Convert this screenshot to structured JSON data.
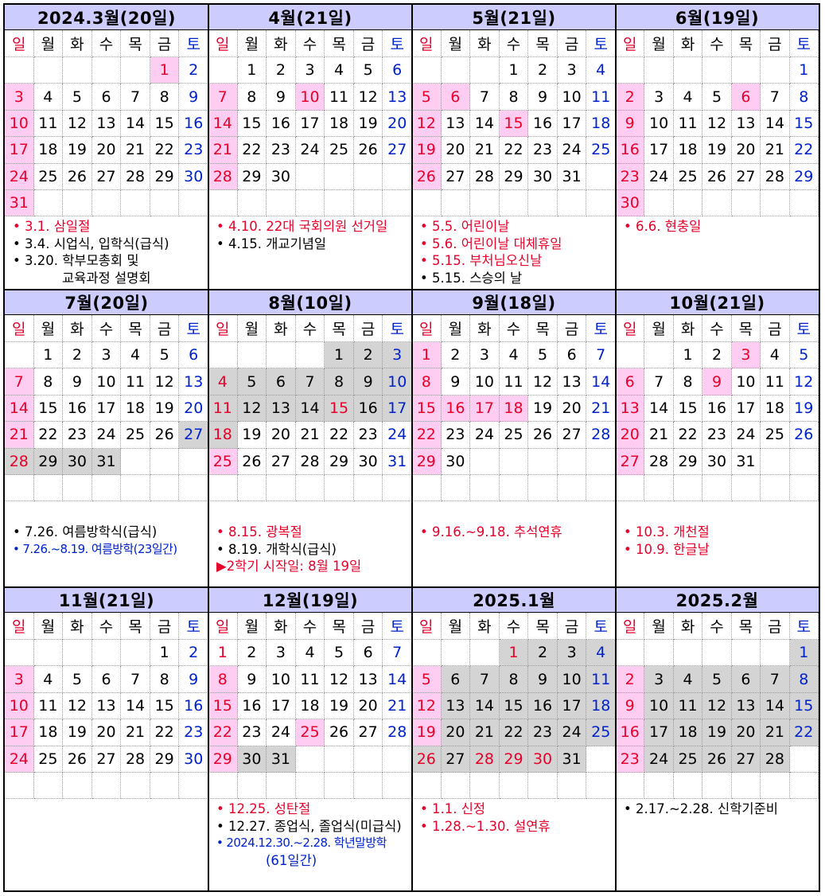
{
  "weekdays": [
    "일",
    "월",
    "화",
    "수",
    "목",
    "금",
    "토"
  ],
  "months": [
    {
      "title": "2024.3월(20일)",
      "start": 5,
      "days": 31,
      "hol": [
        1,
        3,
        10,
        17,
        24,
        31
      ],
      "vac": [],
      "red": [
        1
      ],
      "notes": [
        {
          "t": "• 3.1. 삼일절",
          "c": "red"
        },
        {
          "t": "• 3.4. 시업식, 입학식(급식)",
          "c": "black"
        },
        {
          "t": "• 3.20. 학부모총회 및",
          "c": "black"
        },
        {
          "t": "교육과정 설명회",
          "c": "black",
          "indent": true
        }
      ]
    },
    {
      "title": "4월(21일)",
      "start": 1,
      "days": 30,
      "hol": [
        7,
        10,
        14,
        21,
        28
      ],
      "vac": [],
      "red": [
        10
      ],
      "notes": [
        {
          "t": "• 4.10. 22대 국회의원 선거일",
          "c": "red"
        },
        {
          "t": "• 4.15. 개교기념일",
          "c": "black"
        }
      ]
    },
    {
      "title": "5월(21일)",
      "start": 3,
      "days": 31,
      "hol": [
        5,
        6,
        12,
        15,
        19,
        26
      ],
      "vac": [],
      "red": [
        5,
        6,
        15
      ],
      "notes": [
        {
          "t": "• 5.5. 어린이날",
          "c": "red"
        },
        {
          "t": "• 5.6. 어린이날 대체휴일",
          "c": "red"
        },
        {
          "t": "• 5.15. 부처님오신날",
          "c": "red"
        },
        {
          "t": "• 5.15. 스승의 날",
          "c": "black"
        }
      ]
    },
    {
      "title": "6월(19일)",
      "start": 6,
      "days": 30,
      "hol": [
        2,
        6,
        9,
        16,
        23,
        30
      ],
      "vac": [],
      "red": [
        6
      ],
      "notes": [
        {
          "t": "• 6.6. 현충일",
          "c": "red"
        }
      ]
    },
    {
      "title": "7월(20일)",
      "start": 1,
      "days": 31,
      "hol": [
        7,
        14,
        21
      ],
      "vac": [
        27,
        28,
        29,
        30,
        31
      ],
      "red": [],
      "notes": [
        {
          "t": "• 7.26. 여름방학식(급식)",
          "c": "black"
        },
        {
          "t": "• 7.26.~8.19. 여름방학(23일간)",
          "c": "blue"
        }
      ]
    },
    {
      "title": "8월(10일)",
      "start": 4,
      "days": 31,
      "hol": [
        25
      ],
      "vac": [
        1,
        2,
        3,
        4,
        5,
        6,
        7,
        8,
        9,
        10,
        11,
        12,
        13,
        14,
        15,
        16,
        17,
        18
      ],
      "red": [
        15
      ],
      "notes": [
        {
          "t": "• 8.15. 광복절",
          "c": "red"
        },
        {
          "t": "• 8.19. 개학식(급식)",
          "c": "black"
        },
        {
          "t": "▶2학기 시작일: 8월 19일",
          "c": "red"
        }
      ]
    },
    {
      "title": "9월(18일)",
      "start": 0,
      "days": 30,
      "hol": [
        1,
        8,
        15,
        16,
        17,
        18,
        22,
        29
      ],
      "vac": [],
      "red": [
        16,
        17,
        18
      ],
      "notes": [
        {
          "t": "• 9.16.~9.18. 추석연휴",
          "c": "red"
        }
      ]
    },
    {
      "title": "10월(21일)",
      "start": 2,
      "days": 31,
      "hol": [
        3,
        6,
        9,
        13,
        20,
        27
      ],
      "vac": [],
      "red": [
        3,
        9
      ],
      "notes": [
        {
          "t": "• 10.3. 개천절",
          "c": "red"
        },
        {
          "t": "• 10.9. 한글날",
          "c": "red"
        }
      ]
    },
    {
      "title": "11월(21일)",
      "start": 5,
      "days": 30,
      "hol": [
        3,
        10,
        17,
        24
      ],
      "vac": [],
      "red": [],
      "notes": []
    },
    {
      "title": "12월(19일)",
      "start": 0,
      "days": 31,
      "hol": [
        8,
        15,
        22,
        25,
        29
      ],
      "vac": [
        30,
        31
      ],
      "red": [
        25
      ],
      "notes": [
        {
          "t": "• 12.25. 성탄절",
          "c": "red"
        },
        {
          "t": "• 12.27. 종업식, 졸업식(미급식)",
          "c": "black"
        },
        {
          "t": "• 2024.12.30.~2.28. 학년말방학",
          "c": "blue"
        },
        {
          "t": "(61일간)",
          "c": "blue",
          "indent": true
        }
      ]
    },
    {
      "title": "2025.1월",
      "start": 3,
      "days": 31,
      "hol": [
        5,
        12,
        19
      ],
      "vac": [
        1,
        2,
        3,
        4,
        6,
        7,
        8,
        9,
        10,
        11,
        13,
        14,
        15,
        16,
        17,
        18,
        20,
        21,
        22,
        23,
        24,
        25,
        26,
        27,
        28,
        29,
        30,
        31
      ],
      "red": [
        1,
        28,
        29,
        30
      ],
      "notes": [
        {
          "t": "• 1.1. 신정",
          "c": "red"
        },
        {
          "t": "• 1.28.~1.30. 설연휴",
          "c": "red"
        }
      ]
    },
    {
      "title": "2025.2월",
      "start": 6,
      "days": 28,
      "hol": [
        2,
        9,
        16,
        23
      ],
      "vac": [
        1,
        3,
        4,
        5,
        6,
        7,
        8,
        10,
        11,
        12,
        13,
        14,
        15,
        17,
        18,
        19,
        20,
        21,
        22,
        24,
        25,
        26,
        27,
        28
      ],
      "red": [],
      "notes": [
        {
          "t": "• 2.17.~2.28. 신학기준비",
          "c": "black"
        }
      ]
    }
  ]
}
